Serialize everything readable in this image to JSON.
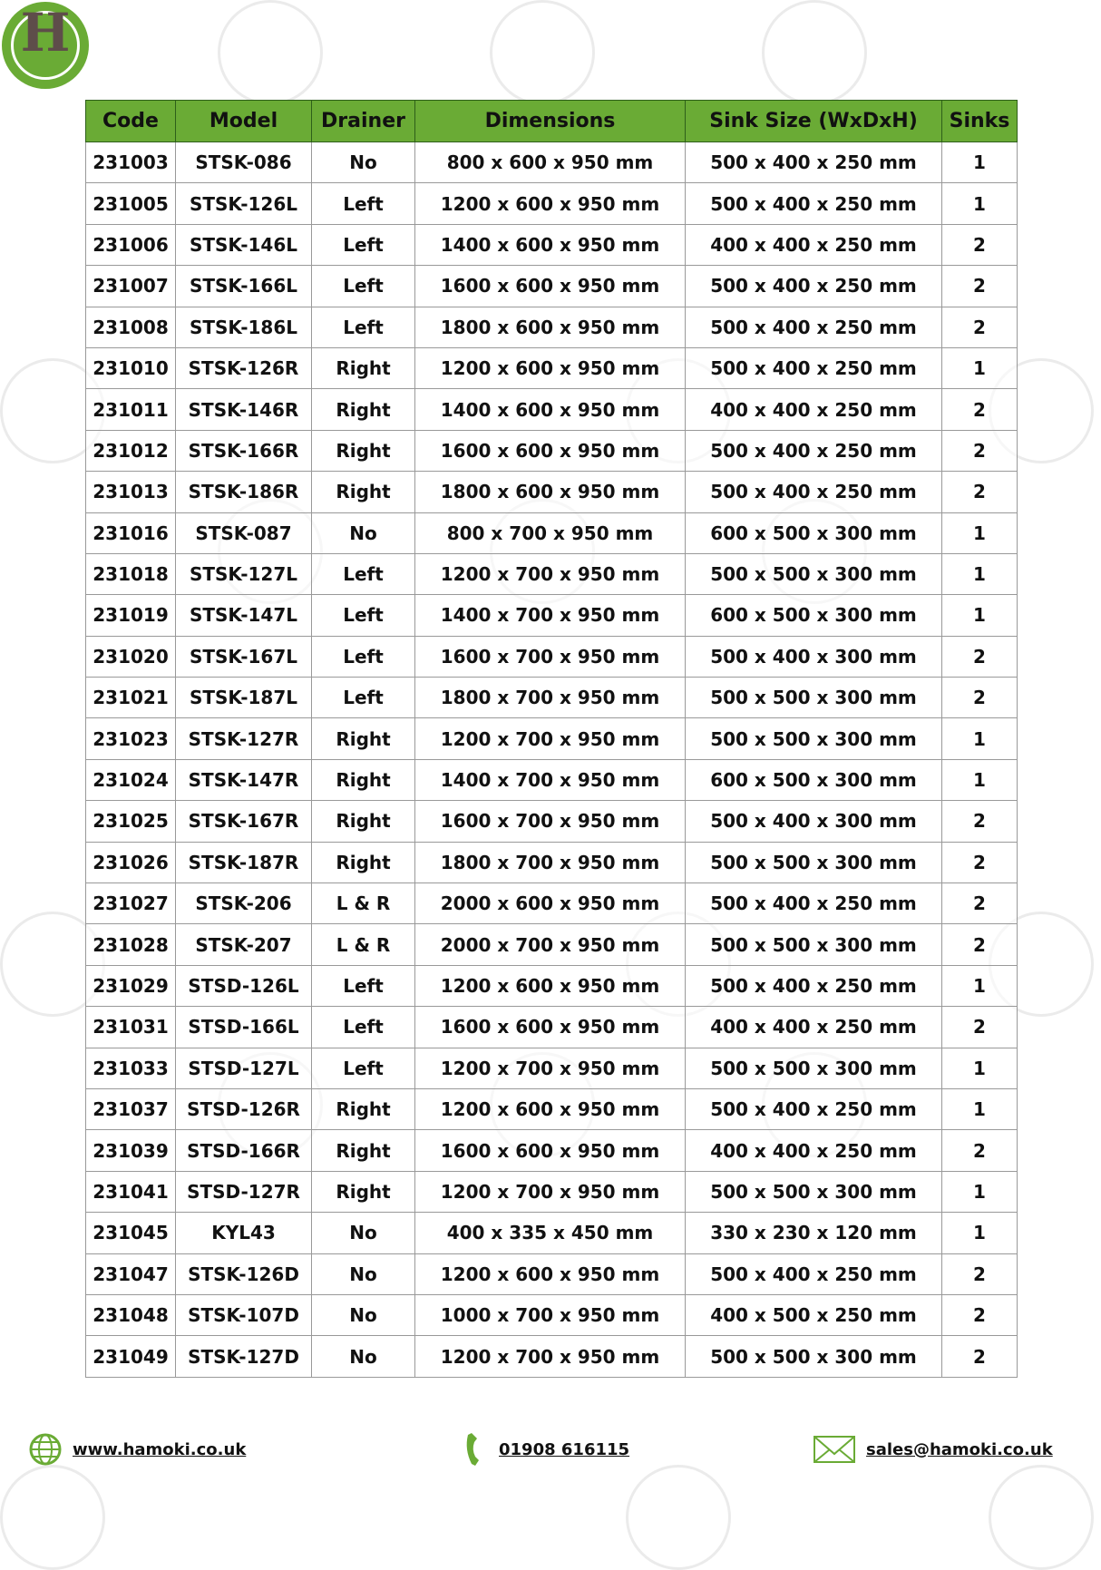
{
  "brand": {
    "logo_letter": "H",
    "accent_color": "#6aab35",
    "logo_letter_color": "#5e4d4a"
  },
  "table": {
    "headers": [
      "Code",
      "Model",
      "Drainer",
      "Dimensions",
      "Sink Size (WxDxH)",
      "Sinks"
    ],
    "rows": [
      [
        "231003",
        "STSK-086",
        "No",
        "800 x 600 x 950 mm",
        "500 x 400 x 250 mm",
        "1"
      ],
      [
        "231005",
        "STSK-126L",
        "Left",
        "1200 x 600 x 950 mm",
        "500 x 400 x 250 mm",
        "1"
      ],
      [
        "231006",
        "STSK-146L",
        "Left",
        "1400 x 600 x 950 mm",
        "400 x 400 x 250 mm",
        "2"
      ],
      [
        "231007",
        "STSK-166L",
        "Left",
        "1600 x 600 x 950 mm",
        "500 x 400 x 250 mm",
        "2"
      ],
      [
        "231008",
        "STSK-186L",
        "Left",
        "1800 x 600 x 950 mm",
        "500 x 400 x 250 mm",
        "2"
      ],
      [
        "231010",
        "STSK-126R",
        "Right",
        "1200 x 600 x 950 mm",
        "500 x 400 x 250 mm",
        "1"
      ],
      [
        "231011",
        "STSK-146R",
        "Right",
        "1400 x 600 x 950 mm",
        "400 x 400 x 250 mm",
        "2"
      ],
      [
        "231012",
        "STSK-166R",
        "Right",
        "1600 x 600 x 950 mm",
        "500 x 400 x 250 mm",
        "2"
      ],
      [
        "231013",
        "STSK-186R",
        "Right",
        "1800 x 600 x 950 mm",
        "500 x 400 x 250 mm",
        "2"
      ],
      [
        "231016",
        "STSK-087",
        "No",
        "800 x 700 x 950 mm",
        "600 x 500 x 300 mm",
        "1"
      ],
      [
        "231018",
        "STSK-127L",
        "Left",
        "1200 x 700 x 950 mm",
        "500 x 500 x 300 mm",
        "1"
      ],
      [
        "231019",
        "STSK-147L",
        "Left",
        "1400 x 700 x 950 mm",
        "600 x 500 x 300 mm",
        "1"
      ],
      [
        "231020",
        "STSK-167L",
        "Left",
        "1600 x 700 x 950 mm",
        "500 x 400 x 300 mm",
        "2"
      ],
      [
        "231021",
        "STSK-187L",
        "Left",
        "1800 x 700 x 950 mm",
        "500 x 500 x 300 mm",
        "2"
      ],
      [
        "231023",
        "STSK-127R",
        "Right",
        "1200 x 700 x 950 mm",
        "500 x 500 x 300 mm",
        "1"
      ],
      [
        "231024",
        "STSK-147R",
        "Right",
        "1400 x 700 x 950 mm",
        "600 x 500 x 300 mm",
        "1"
      ],
      [
        "231025",
        "STSK-167R",
        "Right",
        "1600 x 700 x 950 mm",
        "500 x 400 x 300 mm",
        "2"
      ],
      [
        "231026",
        "STSK-187R",
        "Right",
        "1800 x 700 x 950 mm",
        "500 x 500 x 300 mm",
        "2"
      ],
      [
        "231027",
        "STSK-206",
        "L & R",
        "2000 x 600 x 950 mm",
        "500 x 400 x 250 mm",
        "2"
      ],
      [
        "231028",
        "STSK-207",
        "L & R",
        "2000 x 700 x 950 mm",
        "500 x 500 x 300 mm",
        "2"
      ],
      [
        "231029",
        "STSD-126L",
        "Left",
        "1200 x 600 x 950 mm",
        "500 x 400 x 250 mm",
        "1"
      ],
      [
        "231031",
        "STSD-166L",
        "Left",
        "1600 x 600 x 950 mm",
        "400 x 400 x 250 mm",
        "2"
      ],
      [
        "231033",
        "STSD-127L",
        "Left",
        "1200 x 700 x 950 mm",
        "500 x 500 x 300 mm",
        "1"
      ],
      [
        "231037",
        "STSD-126R",
        "Right",
        "1200 x 600 x 950 mm",
        "500 x 400 x 250 mm",
        "1"
      ],
      [
        "231039",
        "STSD-166R",
        "Right",
        "1600 x 600 x 950 mm",
        "400 x 400 x 250 mm",
        "2"
      ],
      [
        "231041",
        "STSD-127R",
        "Right",
        "1200 x 700 x 950 mm",
        "500 x 500 x 300 mm",
        "1"
      ],
      [
        "231045",
        "KYL43",
        "No",
        "400 x 335 x 450 mm",
        "330 x 230 x 120 mm",
        "1"
      ],
      [
        "231047",
        "STSK-126D",
        "No",
        "1200 x 600 x 950 mm",
        "500 x 400 x 250 mm",
        "2"
      ],
      [
        "231048",
        "STSK-107D",
        "No",
        "1000 x 700 x 950 mm",
        "400 x 500 x 250 mm",
        "2"
      ],
      [
        "231049",
        "STSK-127D",
        "No",
        "1200 x 700 x 950 mm",
        "500 x 500 x 300 mm",
        "2"
      ]
    ]
  },
  "footer": {
    "website": {
      "icon": "globe-icon",
      "text": "www.hamoki.co.uk"
    },
    "phone": {
      "icon": "phone-icon",
      "text": "01908 616115"
    },
    "email": {
      "icon": "envelope-icon",
      "text": "sales@hamoki.co.uk"
    }
  }
}
